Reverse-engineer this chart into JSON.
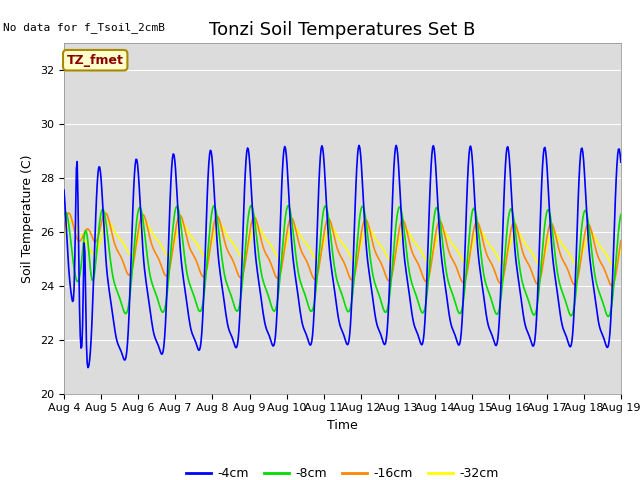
{
  "title": "Tonzi Soil Temperatures Set B",
  "xlabel": "Time",
  "ylabel": "Soil Temperature (C)",
  "no_data_label": "No data for f_Tsoil_2cmB",
  "legend_label": "TZ_fmet",
  "ylim": [
    20,
    33
  ],
  "yticks": [
    20,
    22,
    24,
    26,
    28,
    30,
    32
  ],
  "colors": {
    "4cm": "#0000FF",
    "8cm": "#00DD00",
    "16cm": "#FF8800",
    "32cm": "#FFFF00"
  },
  "legend_entries": [
    "-4cm",
    "-8cm",
    "-16cm",
    "-32cm"
  ],
  "fig_bg": "#FFFFFF",
  "plot_bg": "#DCDCDC",
  "grid_color": "#FFFFFF",
  "n_points": 720,
  "title_fontsize": 13,
  "label_fontsize": 9,
  "tick_fontsize": 8
}
